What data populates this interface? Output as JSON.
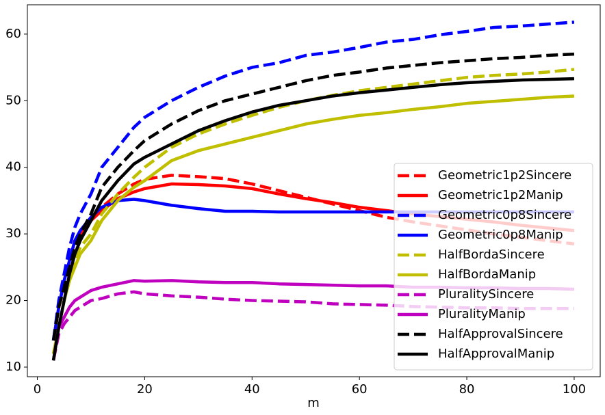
{
  "chart_data": {
    "type": "line",
    "xlabel": "m",
    "x": [
      3,
      4,
      5,
      6,
      7,
      8,
      10,
      12,
      15,
      18,
      20,
      25,
      30,
      35,
      40,
      45,
      50,
      55,
      60,
      65,
      70,
      75,
      80,
      85,
      90,
      95,
      100
    ],
    "xlim": [
      -1.85,
      104.85
    ],
    "xticks": [
      0,
      20,
      40,
      60,
      80,
      100
    ],
    "ylim": [
      8.56,
      64.4
    ],
    "yticks": [
      10,
      20,
      30,
      40,
      50,
      60
    ],
    "legend": "lower right",
    "series": [
      {
        "name": "Geometric1p2Sincere",
        "color": "#ff0000",
        "linestyle": "dashed",
        "values": [
          14,
          19,
          22,
          25,
          28,
          29.5,
          32,
          34,
          36,
          37.5,
          38.2,
          38.8,
          38.6,
          38.3,
          37.5,
          36.5,
          35.5,
          34.5,
          33.5,
          32.5,
          31.8,
          31.2,
          30.6,
          30,
          29.5,
          29,
          28.5
        ]
      },
      {
        "name": "Geometric1p2Manip",
        "color": "#ff0000",
        "linestyle": "solid",
        "values": [
          14,
          19,
          23,
          26,
          29,
          30,
          32,
          33.5,
          35.3,
          36.3,
          36.8,
          37.5,
          37.4,
          37.2,
          36.8,
          36,
          35.3,
          34.7,
          34,
          33.5,
          33,
          32.6,
          32.2,
          31.8,
          31.3,
          30.9,
          30.5
        ]
      },
      {
        "name": "Geometric0p8Sincere",
        "color": "#0000ff",
        "linestyle": "dashed",
        "values": [
          14,
          20,
          24,
          28,
          31,
          33,
          36,
          40,
          43,
          46,
          47.5,
          50,
          52,
          53.7,
          55,
          55.7,
          56.8,
          57.3,
          58,
          58.8,
          59.2,
          59.9,
          60.4,
          61,
          61.2,
          61.5,
          61.8
        ]
      },
      {
        "name": "Geometric0p8Manip",
        "color": "#0000ff",
        "linestyle": "solid",
        "values": [
          14,
          19,
          23,
          26,
          29,
          30.5,
          32.5,
          34,
          35,
          35.2,
          35,
          34.3,
          33.8,
          33.4,
          33.4,
          33.3,
          33.3,
          33.3,
          33.3,
          33.3,
          33.3,
          33.3,
          33.3,
          33.3,
          33.3,
          33.3,
          33.3
        ]
      },
      {
        "name": "HalfBordaSincere",
        "color": "#bfbf00",
        "linestyle": "dashed",
        "values": [
          12,
          16,
          20,
          23,
          26,
          28,
          30,
          33,
          36,
          38.5,
          40,
          43,
          45,
          46.5,
          47.8,
          49,
          50,
          50.8,
          51.5,
          52,
          52.5,
          53,
          53.5,
          53.8,
          54,
          54.3,
          54.7
        ]
      },
      {
        "name": "HalfBordaManip",
        "color": "#bfbf00",
        "linestyle": "solid",
        "values": [
          12,
          16,
          20,
          23,
          25,
          27,
          29,
          32,
          35,
          37,
          38,
          41,
          42.5,
          43.5,
          44.5,
          45.5,
          46.5,
          47.2,
          47.8,
          48.2,
          48.7,
          49.1,
          49.6,
          49.9,
          50.2,
          50.5,
          50.7
        ]
      },
      {
        "name": "PluralitySincere",
        "color": "#bf00bf",
        "linestyle": "dashed",
        "values": [
          11,
          15,
          16.5,
          17.5,
          18.5,
          19,
          20,
          20.3,
          21,
          21.3,
          21,
          20.7,
          20.5,
          20.2,
          20,
          19.9,
          19.8,
          19.5,
          19.4,
          19.3,
          19.1,
          19,
          18.9,
          18.9,
          18.8,
          18.8,
          18.8
        ]
      },
      {
        "name": "PluralityManip",
        "color": "#bf00bf",
        "linestyle": "solid",
        "values": [
          11,
          16,
          17.5,
          19,
          20,
          20.5,
          21.5,
          22,
          22.5,
          23,
          22.9,
          23,
          22.8,
          22.7,
          22.7,
          22.5,
          22.4,
          22.3,
          22.2,
          22.2,
          22,
          22,
          21.9,
          21.9,
          21.8,
          21.8,
          21.7
        ]
      },
      {
        "name": "HalfApprovalSincere",
        "color": "#000000",
        "linestyle": "dashed",
        "values": [
          14,
          19,
          22,
          25,
          28,
          30,
          33,
          37,
          40,
          42.5,
          44,
          46.5,
          48.5,
          50,
          51,
          52,
          53,
          53.8,
          54.3,
          54.9,
          55.3,
          55.7,
          56,
          56.3,
          56.5,
          56.8,
          57
        ]
      },
      {
        "name": "HalfApprovalManip",
        "color": "#000000",
        "linestyle": "solid",
        "values": [
          11,
          16,
          20,
          24,
          27,
          29,
          32,
          35,
          38,
          40.5,
          41.5,
          43.5,
          45.5,
          47,
          48.3,
          49.3,
          50,
          50.7,
          51.2,
          51.6,
          52,
          52.4,
          52.7,
          52.9,
          53.1,
          53.2,
          53.3
        ]
      }
    ]
  }
}
